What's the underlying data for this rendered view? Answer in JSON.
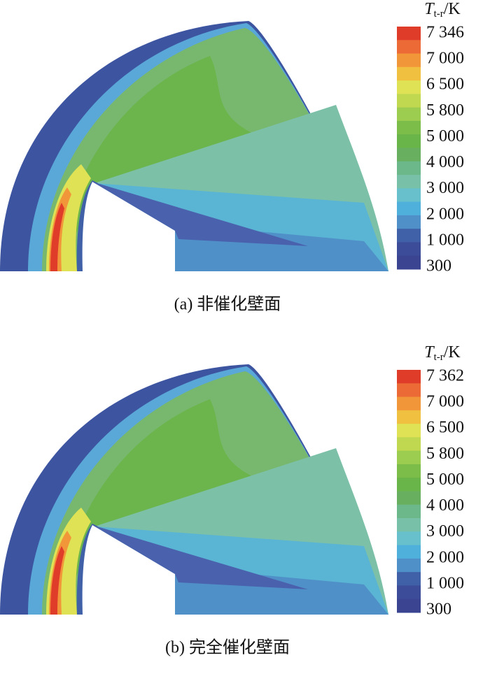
{
  "chart_data": [
    {
      "type": "contour",
      "colorbar_symbol": "T",
      "colorbar_subscript": "t-r",
      "colorbar_unit": "/K",
      "caption": "(a) 非催化壁面",
      "colorbar_ticks": [
        {
          "value": 7346,
          "label": "7 346"
        },
        {
          "value": 7000,
          "label": "7 000"
        },
        {
          "value": 6500,
          "label": "6 500"
        },
        {
          "value": 5800,
          "label": "5 800"
        },
        {
          "value": 5000,
          "label": "5 000"
        },
        {
          "value": 4000,
          "label": "4 000"
        },
        {
          "value": 3000,
          "label": "3 000"
        },
        {
          "value": 2000,
          "label": "2 000"
        },
        {
          "value": 1000,
          "label": "1 000"
        },
        300
      ],
      "colors": [
        "#e03c2a",
        "#ec6a35",
        "#f2963a",
        "#f0c040",
        "#dfe254",
        "#c0d850",
        "#9ccc50",
        "#7cbc48",
        "#6ab54a",
        "#68b060",
        "#6cb88a",
        "#78c0a8",
        "#68c0cc",
        "#50b0dc",
        "#5090c8",
        "#4060a8",
        "#3c4c98",
        "#3a4490"
      ]
    },
    {
      "type": "contour",
      "colorbar_symbol": "T",
      "colorbar_subscript": "t-r",
      "colorbar_unit": "/K",
      "caption": "(b) 完全催化壁面",
      "colorbar_ticks": [
        {
          "value": 7362,
          "label": "7 362"
        },
        {
          "value": 7000,
          "label": "7 000"
        },
        {
          "value": 6500,
          "label": "6 500"
        },
        {
          "value": 5800,
          "label": "5 800"
        },
        {
          "value": 5000,
          "label": "5 000"
        },
        {
          "value": 4000,
          "label": "4 000"
        },
        {
          "value": 3000,
          "label": "3 000"
        },
        {
          "value": 2000,
          "label": "2 000"
        },
        {
          "value": 1000,
          "label": "1 000"
        },
        300
      ],
      "colors": [
        "#e03c2a",
        "#ec6a35",
        "#f2963a",
        "#f0c040",
        "#dfe254",
        "#c0d850",
        "#9ccc50",
        "#7cbc48",
        "#6ab54a",
        "#68b060",
        "#6cb88a",
        "#78c0a8",
        "#68c0cc",
        "#50b0dc",
        "#5090c8",
        "#4060a8",
        "#3c4c98",
        "#3a4490"
      ]
    }
  ]
}
